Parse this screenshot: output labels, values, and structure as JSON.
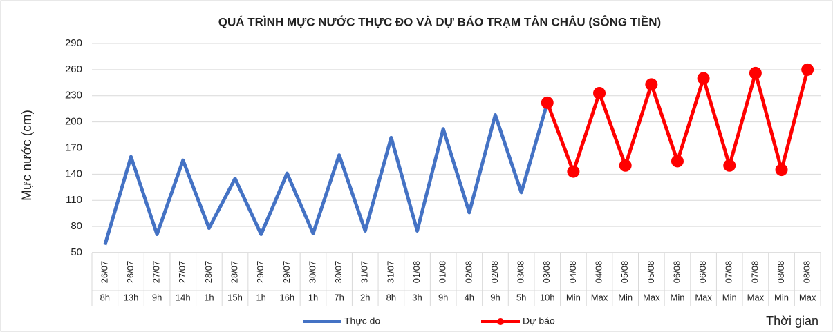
{
  "chart_data": {
    "type": "line",
    "title": "QUÁ TRÌNH MỰC NƯỚC THỰC ĐO VÀ DỰ BÁO TRẠM TÂN CHÂU (SÔNG TIỀN)",
    "y_label": "Mực nước (cm)",
    "x_label": "Thời gian",
    "categories": [
      "26/07",
      "26/07",
      "27/07",
      "27/07",
      "28/07",
      "28/07",
      "29/07",
      "29/07",
      "30/07",
      "30/07",
      "31/07",
      "31/07",
      "01/08",
      "01/08",
      "02/08",
      "02/08",
      "03/08",
      "03/08",
      "04/08",
      "04/08",
      "05/08",
      "05/08",
      "06/08",
      "06/08",
      "07/08",
      "07/08",
      "08/08",
      "08/08"
    ],
    "category_times": [
      "8h",
      "13h",
      "9h",
      "14h",
      "1h",
      "15h",
      "1h",
      "16h",
      "1h",
      "7h",
      "2h",
      "8h",
      "3h",
      "9h",
      "4h",
      "9h",
      "5h",
      "10h",
      "Min",
      "Max",
      "Min",
      "Max",
      "Min",
      "Max",
      "Min",
      "Max",
      "Min",
      "Max"
    ],
    "series": [
      {
        "name": "Thực đo",
        "color": "#4472c4",
        "values": [
          59,
          160,
          71,
          156,
          78,
          135,
          71,
          141,
          72,
          162,
          75,
          182,
          75,
          192,
          96,
          208,
          119,
          222,
          null,
          null,
          null,
          null,
          null,
          null,
          null,
          null,
          null,
          null
        ]
      },
      {
        "name": "Dự báo",
        "color": "#ff0000",
        "values": [
          null,
          null,
          null,
          null,
          null,
          null,
          null,
          null,
          null,
          null,
          null,
          null,
          null,
          null,
          null,
          null,
          null,
          222,
          143,
          233,
          150,
          243,
          155,
          250,
          150,
          256,
          145,
          260
        ]
      }
    ],
    "ylim": [
      50,
      290
    ],
    "yticks": [
      50,
      80,
      110,
      140,
      170,
      200,
      230,
      260,
      290
    ],
    "grid": true,
    "legend": "bottom"
  }
}
